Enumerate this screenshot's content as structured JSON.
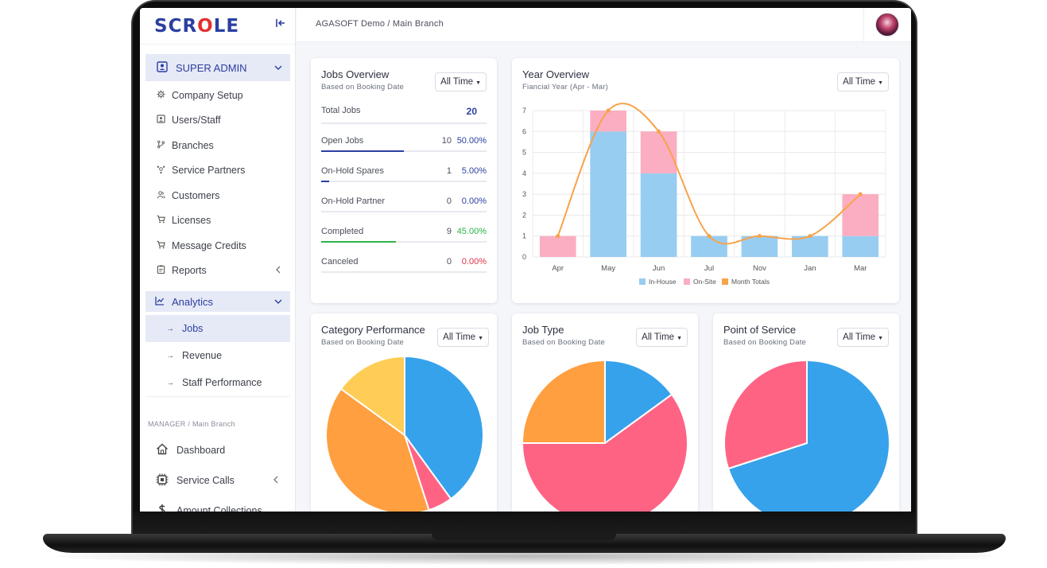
{
  "logo": {
    "text_a": "SCR",
    "text_o": "O",
    "text_b": "LE"
  },
  "breadcrumb": "AGASOFT Demo / Main Branch",
  "sidebar": {
    "admin_title": "SUPER ADMIN",
    "admin_items": [
      {
        "label": "Company Setup",
        "icon": "gear-icon"
      },
      {
        "label": "Users/Staff",
        "icon": "user-card-icon"
      },
      {
        "label": "Branches",
        "icon": "branch-icon"
      },
      {
        "label": "Service Partners",
        "icon": "partners-icon"
      },
      {
        "label": "Customers",
        "icon": "customers-icon"
      },
      {
        "label": "Licenses",
        "icon": "cart-icon"
      },
      {
        "label": "Message Credits",
        "icon": "cart-icon"
      },
      {
        "label": "Reports",
        "icon": "clipboard-icon"
      }
    ],
    "analytics_title": "Analytics",
    "analytics_items": [
      {
        "label": "Jobs",
        "active": true
      },
      {
        "label": "Revenue",
        "active": false
      },
      {
        "label": "Staff Performance",
        "active": false
      }
    ],
    "manager_label": "MANAGER / Main Branch",
    "manager_items": [
      {
        "label": "Dashboard",
        "icon": "home-icon"
      },
      {
        "label": "Service Calls",
        "icon": "chip-icon"
      },
      {
        "label": "Amount Collections",
        "icon": "dollar-icon"
      }
    ]
  },
  "jobs_overview": {
    "title": "Jobs Overview",
    "subtitle": "Based on Booking Date",
    "filter": "All Time",
    "total_label": "Total Jobs",
    "total_value": "20",
    "stats": [
      {
        "label": "Open Jobs",
        "count": "10",
        "percent": "50.00%",
        "fraction": 0.5,
        "color": "#2b3fa0"
      },
      {
        "label": "On-Hold Spares",
        "count": "1",
        "percent": "5.00%",
        "fraction": 0.05,
        "color": "#2b3fa0"
      },
      {
        "label": "On-Hold Partner",
        "count": "0",
        "percent": "0.00%",
        "fraction": 0,
        "color": "#2b3fa0"
      },
      {
        "label": "Completed",
        "count": "9",
        "percent": "45.00%",
        "fraction": 0.45,
        "color": "#2bb44a"
      },
      {
        "label": "Canceled",
        "count": "0",
        "percent": "0.00%",
        "fraction": 0,
        "color": "#e0334a"
      }
    ]
  },
  "year_overview": {
    "title": "Year Overview",
    "subtitle": "Fiancial Year (Apr - Mar)",
    "filter": "All Time"
  },
  "category_performance": {
    "title": "Category Performance",
    "subtitle": "Based on Booking Date",
    "filter": "All Time"
  },
  "job_type": {
    "title": "Job Type",
    "subtitle": "Based on Booking Date",
    "filter": "All Time"
  },
  "point_of_service": {
    "title": "Point of Service",
    "subtitle": "Based on Booking Date",
    "filter": "All Time"
  },
  "colors": {
    "brand": "#2b3fa0",
    "inhouse": "#98cdf2",
    "onsite": "#fbaec1",
    "totals": "#f7a34b",
    "pie_blue": "#36a2eb",
    "pie_orange": "#ff9f40",
    "pie_yellow": "#ffcd56",
    "pie_pink": "#ff6384"
  },
  "chart_data": [
    {
      "type": "bar",
      "categories": [
        "Apr",
        "May",
        "Jun",
        "Jul",
        "Nov",
        "Jan",
        "Mar"
      ],
      "stacked": true,
      "series": [
        {
          "name": "In-House",
          "values": [
            0,
            6,
            4,
            1,
            1,
            1,
            1
          ]
        },
        {
          "name": "On-Site",
          "values": [
            1,
            1,
            2,
            0,
            0,
            0,
            2
          ]
        },
        {
          "name": "Month Totals",
          "type": "line",
          "values": [
            1,
            7,
            6,
            1,
            1,
            1,
            3
          ]
        }
      ],
      "yticks": [
        "0",
        "1",
        "2",
        "3",
        "4",
        "5",
        "6",
        "7"
      ],
      "ylim": [
        0,
        7
      ],
      "legend": "bottom",
      "grid": true
    },
    {
      "type": "pie",
      "values": [
        40,
        5,
        40,
        15
      ],
      "colors": [
        "#36a2eb",
        "#ff6384",
        "#ff9f40",
        "#ffcd56"
      ]
    },
    {
      "type": "pie",
      "values": [
        15,
        60,
        25
      ],
      "colors": [
        "#36a2eb",
        "#ff6384",
        "#ff9f40"
      ]
    },
    {
      "type": "pie",
      "values": [
        70,
        30
      ],
      "colors": [
        "#36a2eb",
        "#ff6384"
      ]
    }
  ]
}
